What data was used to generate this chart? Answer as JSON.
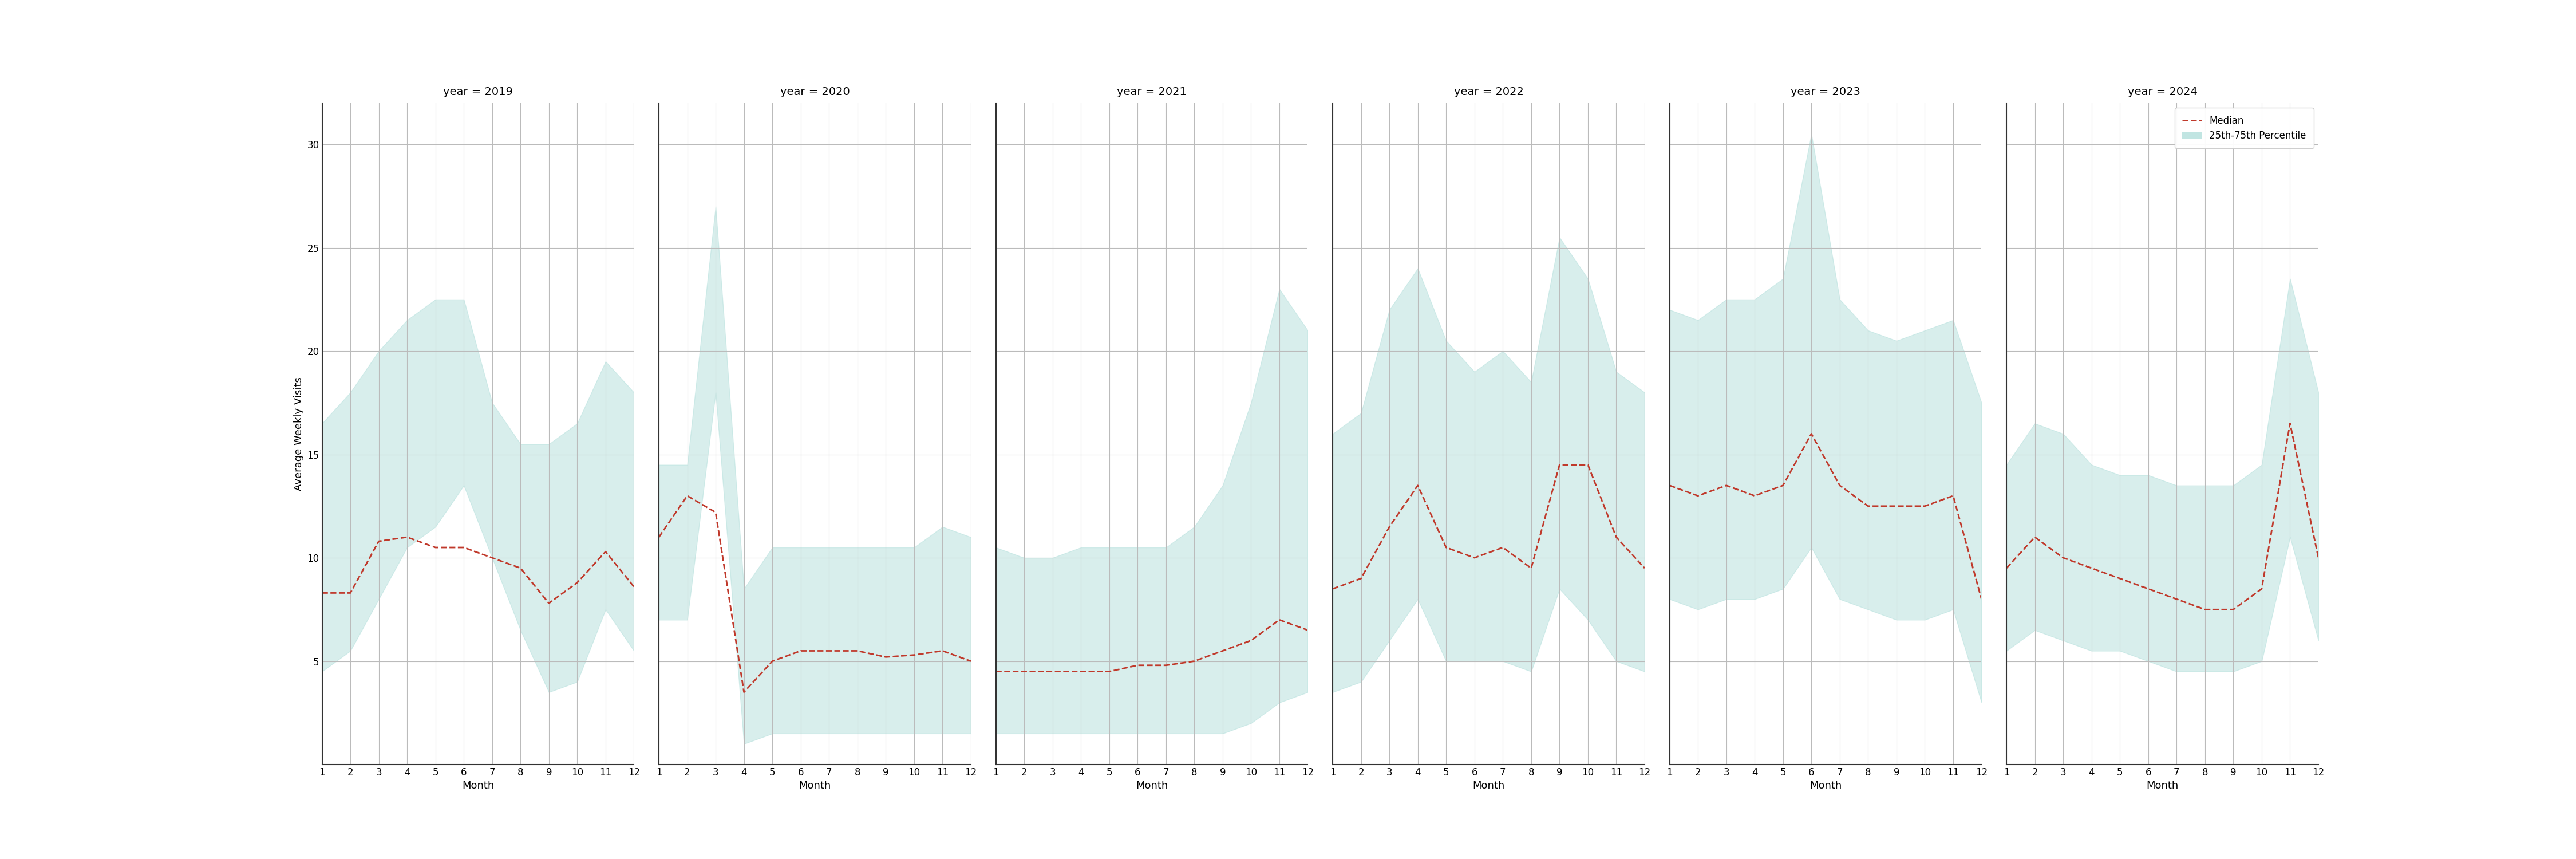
{
  "years": [
    2019,
    2020,
    2021,
    2022,
    2023,
    2024
  ],
  "months": [
    1,
    2,
    3,
    4,
    5,
    6,
    7,
    8,
    9,
    10,
    11,
    12
  ],
  "median": {
    "2019": [
      8.3,
      8.3,
      10.8,
      11.0,
      10.5,
      10.5,
      10.0,
      9.5,
      7.8,
      8.8,
      10.3,
      8.6
    ],
    "2020": [
      11.0,
      13.0,
      12.2,
      3.5,
      5.0,
      5.5,
      5.5,
      5.5,
      5.2,
      5.3,
      5.5,
      5.0
    ],
    "2021": [
      4.5,
      4.5,
      4.5,
      4.5,
      4.5,
      4.8,
      4.8,
      5.0,
      5.5,
      6.0,
      7.0,
      6.5
    ],
    "2022": [
      8.5,
      9.0,
      11.5,
      13.5,
      10.5,
      10.0,
      10.5,
      9.5,
      14.5,
      14.5,
      11.0,
      9.5
    ],
    "2023": [
      13.5,
      13.0,
      13.5,
      13.0,
      13.5,
      16.0,
      13.5,
      12.5,
      12.5,
      12.5,
      13.0,
      8.0
    ],
    "2024": [
      9.5,
      11.0,
      10.0,
      9.5,
      9.0,
      8.5,
      8.0,
      7.5,
      7.5,
      8.5,
      16.5,
      10.0
    ]
  },
  "q25": {
    "2019": [
      4.5,
      5.5,
      8.0,
      10.5,
      11.5,
      13.5,
      10.0,
      6.5,
      3.5,
      4.0,
      7.5,
      5.5
    ],
    "2020": [
      7.0,
      7.0,
      18.0,
      1.0,
      1.5,
      1.5,
      1.5,
      1.5,
      1.5,
      1.5,
      1.5,
      1.5
    ],
    "2021": [
      1.5,
      1.5,
      1.5,
      1.5,
      1.5,
      1.5,
      1.5,
      1.5,
      1.5,
      2.0,
      3.0,
      3.5
    ],
    "2022": [
      3.5,
      4.0,
      6.0,
      8.0,
      5.0,
      5.0,
      5.0,
      4.5,
      8.5,
      7.0,
      5.0,
      4.5
    ],
    "2023": [
      8.0,
      7.5,
      8.0,
      8.0,
      8.5,
      10.5,
      8.0,
      7.5,
      7.0,
      7.0,
      7.5,
      3.0
    ],
    "2024": [
      5.5,
      6.5,
      6.0,
      5.5,
      5.5,
      5.0,
      4.5,
      4.5,
      4.5,
      5.0,
      11.0,
      6.0
    ]
  },
  "q75": {
    "2019": [
      16.5,
      18.0,
      20.0,
      21.5,
      22.5,
      22.5,
      17.5,
      15.5,
      15.5,
      16.5,
      19.5,
      18.0
    ],
    "2020": [
      14.5,
      14.5,
      27.0,
      8.5,
      10.5,
      10.5,
      10.5,
      10.5,
      10.5,
      10.5,
      11.5,
      11.0
    ],
    "2021": [
      10.5,
      10.0,
      10.0,
      10.5,
      10.5,
      10.5,
      10.5,
      11.5,
      13.5,
      17.5,
      23.0,
      21.0
    ],
    "2022": [
      16.0,
      17.0,
      22.0,
      24.0,
      20.5,
      19.0,
      20.0,
      18.5,
      25.5,
      23.5,
      19.0,
      18.0
    ],
    "2023": [
      22.0,
      21.5,
      22.5,
      22.5,
      23.5,
      30.5,
      22.5,
      21.0,
      20.5,
      21.0,
      21.5,
      17.5
    ],
    "2024": [
      14.5,
      16.5,
      16.0,
      14.5,
      14.0,
      14.0,
      13.5,
      13.5,
      13.5,
      14.5,
      23.5,
      18.0
    ]
  },
  "fill_color": "#b2dfdb",
  "fill_alpha": 0.5,
  "line_color": "#c0392b",
  "line_style": "--",
  "line_width": 2.0,
  "ylabel": "Average Weekly Visits",
  "xlabel": "Month",
  "ylim": [
    0,
    32
  ],
  "yticks": [
    5,
    10,
    15,
    20,
    25,
    30
  ],
  "xticks": [
    1,
    2,
    3,
    4,
    5,
    6,
    7,
    8,
    9,
    10,
    11,
    12
  ],
  "grid_color": "#bbbbbb",
  "bg_color": "#ffffff",
  "title_fontsize": 14,
  "label_fontsize": 13,
  "tick_fontsize": 12
}
